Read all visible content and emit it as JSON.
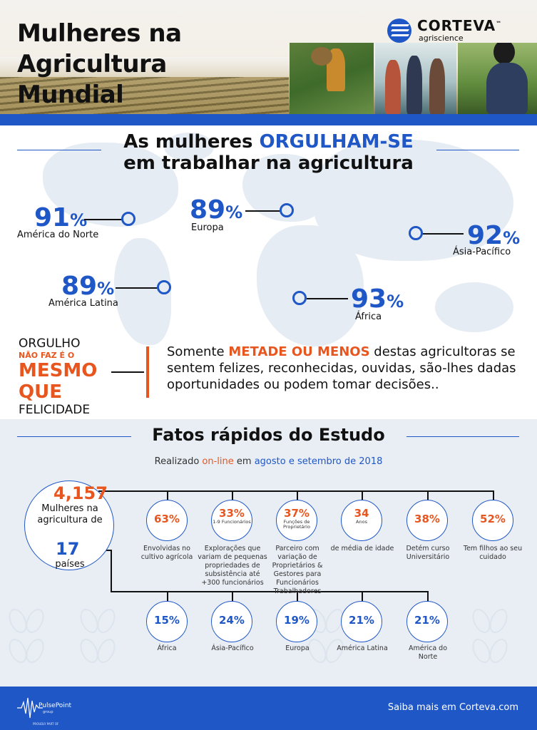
{
  "header": {
    "title_lines": [
      "Mulheres na",
      "Agricultura",
      "Mundial"
    ],
    "logo_name": "CORTEVA",
    "logo_tm": "™",
    "logo_sub": "agriscience"
  },
  "pride_section": {
    "headline_pre": "As mulheres ",
    "headline_accent": "ORGULHAM-SE",
    "headline_line2": "em trabalhar na agricultura",
    "regions": [
      {
        "value": "91",
        "unit": "%",
        "label": "América do Norte"
      },
      {
        "value": "89",
        "unit": "%",
        "label": "Europa"
      },
      {
        "value": "92",
        "unit": "%",
        "label": "Ásia-Pacífico"
      },
      {
        "value": "89",
        "unit": "%",
        "label": "América Latina"
      },
      {
        "value": "93",
        "unit": "%",
        "label": "África"
      }
    ]
  },
  "happiness": {
    "line1": "ORGULHO",
    "line2": "NÃO FAZ É O",
    "line3": "MESMO",
    "line4": "QUE",
    "line5": "FELICIDADE",
    "note_pre": "Somente ",
    "note_hi": "METADE OU MENOS",
    "note_post": " destas agricultoras se sentem felizes, reconhecidas, ouvidas, são-lhes dadas oportunidades ou podem tomar decisões.."
  },
  "facts": {
    "title": "Fatos rápidos do Estudo",
    "sub_a": "Realizado ",
    "sub_b": "on-line",
    "sub_c": " em ",
    "sub_d": "agosto e setembro de 2018",
    "women_count": "4,157",
    "women_label": "Mulheres na agricultura de",
    "country_count": "17",
    "country_label": "países",
    "top_row": [
      {
        "value": "63%",
        "sub": "",
        "caption": "Envolvidas no cultivo agrícola"
      },
      {
        "value": "33%",
        "sub": "1-9 Funcionários",
        "caption": "Explorações que variam de pequenas propriedades de subsistência até +300 funcionários"
      },
      {
        "value": "37%",
        "sub": "Funções de Proprietário",
        "caption": "Parceiro com variação de Proprietários & Gestores para Funcionários Trabalhadores"
      },
      {
        "value": "34",
        "sub": "Anos",
        "caption": "de média de idade"
      },
      {
        "value": "38%",
        "sub": "",
        "caption": "Detém curso Universitário"
      },
      {
        "value": "52%",
        "sub": "",
        "caption": "Tem filhos ao seu cuidado"
      }
    ],
    "bottom_row": [
      {
        "value": "15%",
        "caption": "África"
      },
      {
        "value": "24%",
        "caption": "Ásia-Pacífico"
      },
      {
        "value": "19%",
        "caption": "Europa"
      },
      {
        "value": "21%",
        "caption": "América Latina"
      },
      {
        "value": "21%",
        "caption": "América do Norte"
      }
    ]
  },
  "footer": {
    "brand": "PulsePoint",
    "brand_sub": "group",
    "part_of": "PROUDLY PART OF",
    "cta": "Saiba mais em Corteva.com"
  },
  "colors": {
    "blue": "#1f57c7",
    "orange": "#e8561f",
    "light_bg": "#e9eef5"
  }
}
